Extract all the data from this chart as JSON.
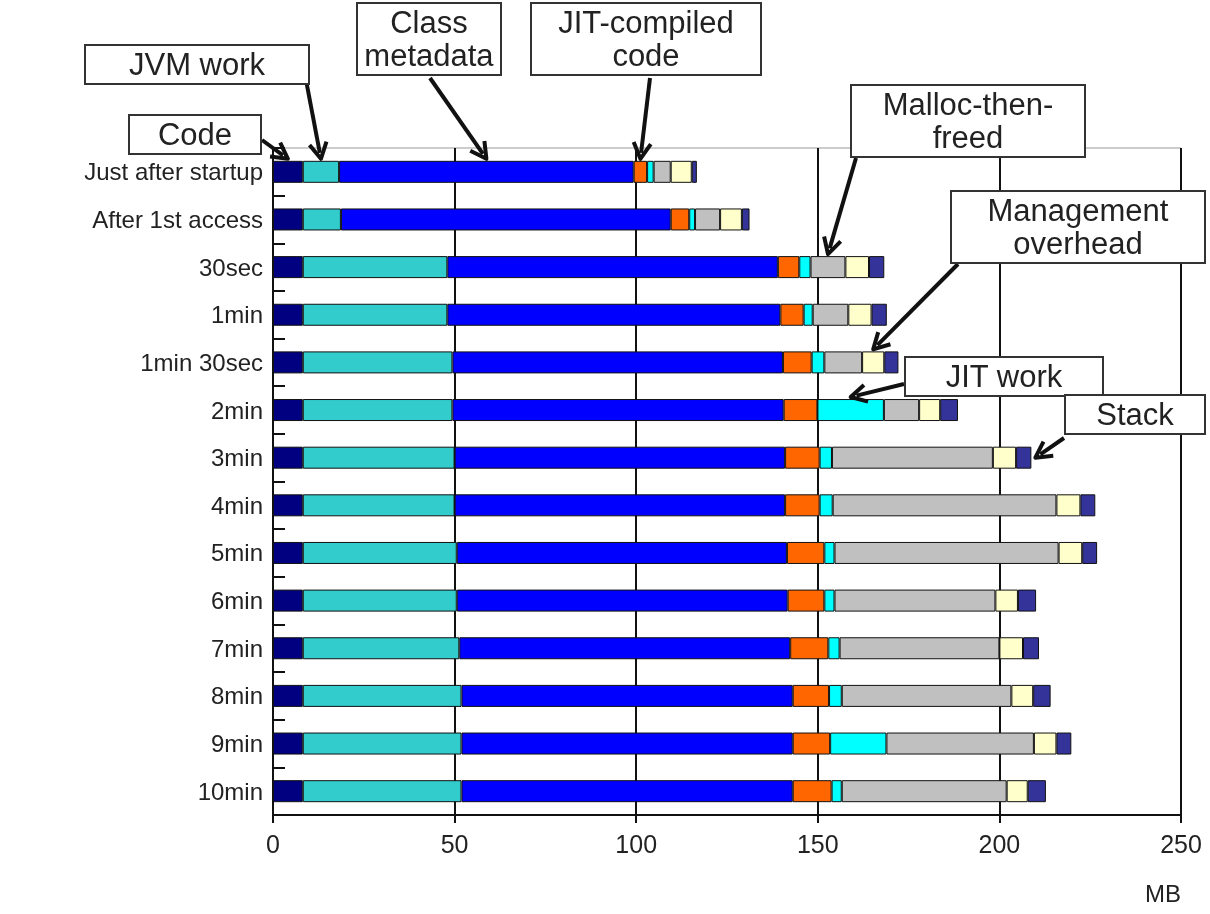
{
  "chart_data": {
    "type": "bar",
    "orientation": "horizontal",
    "stacked": true,
    "xlabel": "MB",
    "categories": [
      "Just after startup",
      "After 1st access",
      "30sec",
      "1min",
      "1min 30sec",
      "2min",
      "3min",
      "4min",
      "5min",
      "6min",
      "7min",
      "8min",
      "9min",
      "10min"
    ],
    "series": [
      {
        "name": "Code",
        "color": "#000080",
        "values": [
          8.2,
          8.2,
          8.2,
          8.2,
          8.2,
          8.2,
          8.2,
          8.2,
          8.2,
          8.2,
          8.2,
          8.2,
          8.2,
          8.2
        ]
      },
      {
        "name": "JVM work",
        "color": "#33cccc",
        "values": [
          10,
          10.5,
          39.8,
          39.8,
          41.2,
          41.2,
          41.8,
          41.8,
          42.4,
          42.4,
          43.1,
          43.7,
          43.7,
          43.7
        ]
      },
      {
        "name": "Class metadata",
        "color": "#0000ff",
        "values": [
          81.1,
          90.8,
          91,
          91.7,
          91,
          91.2,
          91,
          91,
          90.9,
          91.1,
          91.1,
          91.2,
          91.2,
          91.2
        ]
      },
      {
        "name": "JIT-compiled code",
        "color": "#ff6600",
        "values": [
          3.7,
          5.1,
          5.9,
          6.4,
          7.9,
          9.3,
          9.5,
          9.5,
          10.3,
          10.1,
          10.5,
          10,
          10.3,
          10.7
        ]
      },
      {
        "name": "JIT work",
        "color": "#00ffff",
        "values": [
          1.8,
          1.6,
          3.1,
          2.5,
          3.5,
          18.3,
          3.4,
          3.6,
          2.8,
          2.8,
          3.1,
          3.5,
          15.5,
          2.8
        ]
      },
      {
        "name": "Malloc-then-freed",
        "color": "#c0c0c0",
        "values": [
          4.7,
          6.9,
          9.6,
          9.8,
          10.4,
          9.7,
          44.3,
          61.6,
          61.7,
          44.3,
          44,
          46.7,
          40.6,
          45.4
        ]
      },
      {
        "name": "Management overhead",
        "color": "#ffffcc",
        "values": [
          5.8,
          6,
          6.5,
          6.4,
          6.1,
          5.8,
          6.4,
          6.6,
          6.5,
          6.2,
          6.5,
          6,
          6.2,
          5.8
        ]
      },
      {
        "name": "Stack",
        "color": "#333399",
        "values": [
          1.4,
          2.1,
          4.2,
          4.2,
          3.9,
          4.9,
          4.2,
          4.1,
          4.1,
          5,
          4.4,
          4.8,
          4.1,
          5
        ]
      }
    ],
    "xlim": [
      0,
      250
    ],
    "xticks": [
      0,
      50,
      100,
      150,
      200,
      250
    ],
    "grid": "x"
  }
}
